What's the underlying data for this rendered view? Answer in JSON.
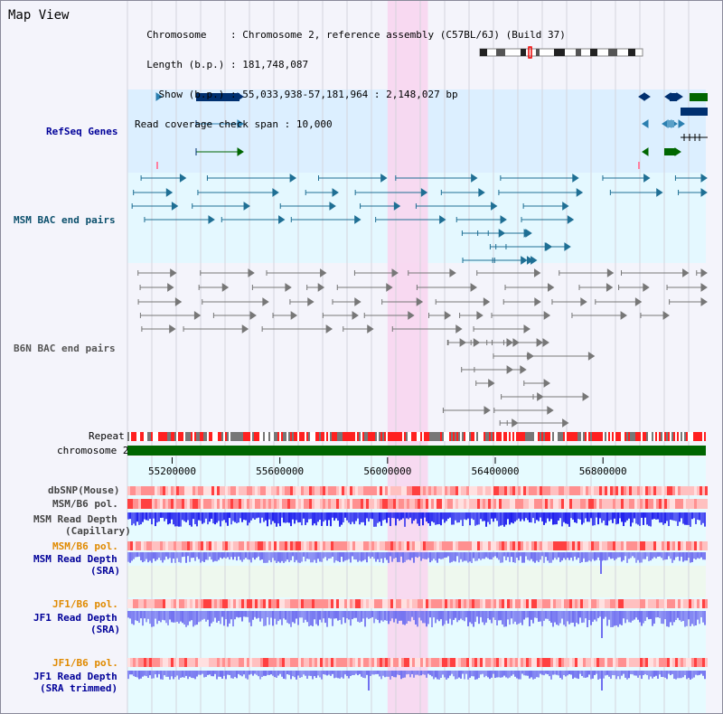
{
  "page": {
    "title": "Map View"
  },
  "info": {
    "chromosome_label": "Chromosome",
    "chromosome_value": "Chromosome 2, reference assembly (C57BL/6J) (Build 37)",
    "length_label": "Length (b.p.)",
    "length_value": "181,748,087",
    "show_label": "Show (b.p.)",
    "show_value": "55,033,938-57,181,964 : 2,148,027 bp",
    "coverage_label": "Read coverage check span",
    "coverage_value": "10,000"
  },
  "axis": {
    "ticks": [
      "55200000",
      "55600000",
      "56000000",
      "56400000",
      "56800000"
    ],
    "tick_values": [
      55200000,
      55600000,
      56000000,
      56400000,
      56800000
    ],
    "start": 55033938,
    "end": 57181964
  },
  "highlight": {
    "start": 56000000,
    "end": 56150000
  },
  "tracks": {
    "refseq": "RefSeq Genes",
    "msm_bac": "MSM BAC end pairs",
    "b6n_bac": "B6N BAC end pairs",
    "repeat": "Repeat",
    "chromosome": "chromosome 2",
    "dbsnp": "dbSNP(Mouse)",
    "msm_b6_pol": "MSM/B6 pol.",
    "msm_depth_cap_1": "MSM Read Depth",
    "msm_depth_cap_2": "(Capillary)",
    "msm_b6_pol_2": "MSM/B6 pol.",
    "msm_depth_sra_1": "MSM Read Depth",
    "msm_depth_sra_2": "(SRA)",
    "jf1_b6_pol": "JF1/B6 pol.",
    "jf1_depth_sra_1": "JF1 Read Depth",
    "jf1_depth_sra_2": "(SRA)",
    "jf1_b6_pol_2": "JF1/B6 pol.",
    "jf1_depth_trim_1": "JF1 Read Depth",
    "jf1_depth_trim_2": "(SRA trimmed)"
  },
  "colors": {
    "refseq_bg": "#dcefff",
    "msm_bg": "#e4f8ff",
    "b6n_bg": "#f4f4fb",
    "highlight": "#f8d6f0",
    "refseq_label": "#000099",
    "msm_label": "#0b4f6c",
    "pol_label_orange": "#e08a00",
    "depth_label": "#000099",
    "gene_dark": "#003070",
    "gene_green": "#006600",
    "gene_teal": "#2b7fb0",
    "msm_pair": "#1f6f94",
    "b6n_pair": "#777777",
    "chromosome_bar": "#006600",
    "depth_blue": "#2020ee",
    "depth_light": "#7070f0"
  }
}
